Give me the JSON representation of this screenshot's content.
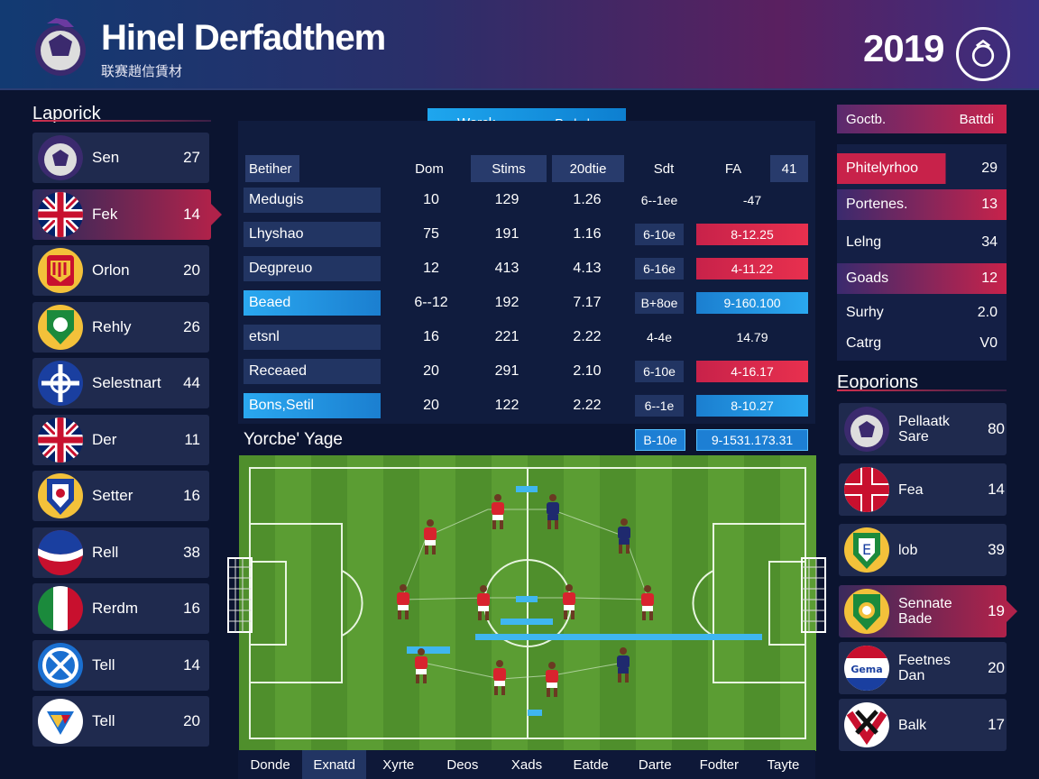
{
  "header": {
    "title": "Hinel Derfadthem",
    "subtitle": "联赛趙信賃材",
    "year": "2019"
  },
  "left_section": {
    "title": "Laporick"
  },
  "teams": [
    {
      "name": "Sen",
      "num": "27",
      "icon": "league-ball-icon"
    },
    {
      "name": "Fek",
      "num": "14",
      "icon": "union-jack-flag-icon",
      "active": true
    },
    {
      "name": "Orlon",
      "num": "20",
      "icon": "spain-crest-icon"
    },
    {
      "name": "Rehly",
      "num": "26",
      "icon": "green-crest-icon"
    },
    {
      "name": "Selestnart",
      "num": "44",
      "icon": "blue-star-flag-icon"
    },
    {
      "name": "Der",
      "num": "11",
      "icon": "union-jack-flag-icon"
    },
    {
      "name": "Setter",
      "num": "16",
      "icon": "shield-crest-icon"
    },
    {
      "name": "Rell",
      "num": "38",
      "icon": "blue-red-flag-icon"
    },
    {
      "name": "Rerdm",
      "num": "16",
      "icon": "italy-flag-icon"
    },
    {
      "name": "Tell",
      "num": "14",
      "icon": "blue-cross-flag-icon"
    },
    {
      "name": "Tell",
      "num": "20",
      "icon": "multicolor-crest-icon"
    }
  ],
  "tabs": {
    "left": "Worck",
    "right": "Redgde"
  },
  "table": {
    "headers": [
      "Betiher",
      "Dom",
      "Stims",
      "20dtie",
      "Sdt",
      "FA",
      "41"
    ],
    "rows": [
      {
        "name": "Medugis",
        "c1": "10",
        "c2": "129",
        "c3": "1.26",
        "c4": "6--1ee",
        "c5": "-47",
        "style": "plain"
      },
      {
        "name": "Lhyshao",
        "c1": "75",
        "c2": "191",
        "c3": "1.16",
        "c4": "6-10e",
        "c5": "8-12.25",
        "style": "red"
      },
      {
        "name": "Degpreuo",
        "c1": "12",
        "c2": "413",
        "c3": "4.13",
        "c4": "6-16e",
        "c5": "4-11.22",
        "style": "red"
      },
      {
        "name": "Beaed",
        "c1": "6--12",
        "c2": "192",
        "c3": "7.17",
        "c4": "B+8oe",
        "c5": "9-160.100",
        "style": "blue"
      },
      {
        "name": "etsnl",
        "c1": "16",
        "c2": "221",
        "c3": "2.22",
        "c4": "4-4e",
        "c5": "14.79",
        "style": "plain"
      },
      {
        "name": "Receaed",
        "c1": "20",
        "c2": "291",
        "c3": "2.10",
        "c4": "6-10e",
        "c5": "4-16.17",
        "style": "red"
      },
      {
        "name": "Bons,Setil",
        "c1": "20",
        "c2": "122",
        "c3": "2.22",
        "c4": "6--1e",
        "c5": "8-10.27",
        "style": "blue"
      }
    ]
  },
  "pitch": {
    "title": "Yorcbe' Yage",
    "pill_left": "B-10e",
    "pill_right": "9-1531.173.31"
  },
  "bottom_tabs": [
    "Donde",
    "Exnatd",
    "Xyrte",
    "Deos",
    "Xads",
    "Eatde",
    "Darte",
    "Fodter",
    "Tayte"
  ],
  "right_stats": {
    "header_left": "Goctb.",
    "header_right": "Battdi",
    "rows": [
      {
        "label": "Phitelyrhoo",
        "value": "29",
        "highlight": true
      },
      {
        "label": "Portenes.",
        "value": "13",
        "highlight": true
      },
      {
        "label": "Lelng",
        "value": "34",
        "highlight": false
      },
      {
        "label": "Goads",
        "value": "12",
        "highlight": true
      },
      {
        "label": "Surhy",
        "value": "2.0",
        "highlight": false
      },
      {
        "label": "Catrg",
        "value": "V0",
        "highlight": false
      }
    ]
  },
  "opponents": {
    "title": "Eoporions",
    "items": [
      {
        "name": "Pellaatk Sare",
        "num": "80",
        "icon": "league-ball-icon"
      },
      {
        "name": "Fea",
        "num": "14",
        "icon": "red-cross-flag-icon"
      },
      {
        "name": "lob",
        "num": "39",
        "icon": "green-e-crest-icon"
      },
      {
        "name": "Sennate Bade",
        "num": "19",
        "icon": "green-gold-crest-icon",
        "active": true
      },
      {
        "name": "Feetnes Dan",
        "num": "20",
        "icon": "gema-flag-icon"
      },
      {
        "name": "Balk",
        "num": "17",
        "icon": "red-black-crest-icon"
      }
    ]
  }
}
